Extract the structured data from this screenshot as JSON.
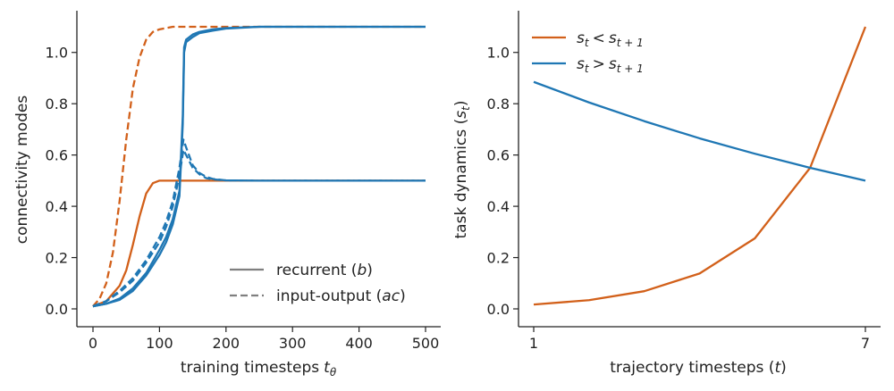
{
  "chart_data": [
    {
      "type": "line",
      "title": "",
      "xlabel": "training timesteps",
      "xlabel_sub": "θ",
      "xlabel_var": "t",
      "ylabel": "connectivity modes",
      "xlim": [
        0,
        500
      ],
      "ylim": [
        0.0,
        1.1
      ],
      "xticks": [
        0,
        100,
        200,
        300,
        400,
        500
      ],
      "yticks": [
        0.0,
        0.2,
        0.4,
        0.6,
        0.8,
        1.0
      ],
      "xtick_labels": [
        "0",
        "100",
        "200",
        "300",
        "400",
        "500"
      ],
      "ytick_labels": [
        "0.0",
        "0.2",
        "0.4",
        "0.6",
        "0.8",
        "1.0"
      ],
      "grid": false,
      "legend_position": "bottom-right",
      "legend": [
        {
          "label_prefix": "recurrent (",
          "label_var": "b",
          "label_suffix": ")",
          "style": "solid"
        },
        {
          "label_prefix": "input-output (",
          "label_var": "ac",
          "label_suffix": ")",
          "style": "dashed"
        }
      ],
      "colors": {
        "orange": "#d2601a",
        "blue": "#1f77b4",
        "legend_gray": "#7f7f7f"
      },
      "series": [
        {
          "color": "orange",
          "style": "dashed",
          "x": [
            0,
            10,
            20,
            30,
            40,
            50,
            60,
            70,
            80,
            90,
            100,
            120,
            140,
            160,
            200,
            300,
            400,
            500
          ],
          "y": [
            0.01,
            0.04,
            0.1,
            0.22,
            0.42,
            0.66,
            0.86,
            0.98,
            1.05,
            1.08,
            1.09,
            1.1,
            1.1,
            1.1,
            1.1,
            1.1,
            1.1,
            1.1
          ]
        },
        {
          "color": "orange",
          "style": "solid",
          "x": [
            0,
            20,
            40,
            50,
            60,
            70,
            80,
            90,
            100,
            110,
            120,
            140,
            200,
            300,
            400,
            500
          ],
          "y": [
            0.01,
            0.03,
            0.09,
            0.15,
            0.25,
            0.36,
            0.45,
            0.49,
            0.5,
            0.5,
            0.5,
            0.5,
            0.5,
            0.5,
            0.5,
            0.5
          ]
        },
        {
          "color": "blue",
          "style": "dashed",
          "x": [
            0,
            20,
            40,
            60,
            80,
            100,
            110,
            120,
            130,
            136,
            140,
            150,
            160,
            170,
            180,
            200,
            250,
            300,
            400,
            500
          ],
          "y": [
            0.01,
            0.03,
            0.07,
            0.12,
            0.19,
            0.28,
            0.34,
            0.42,
            0.55,
            0.66,
            0.63,
            0.56,
            0.53,
            0.515,
            0.507,
            0.501,
            0.5,
            0.5,
            0.5,
            0.5
          ]
        },
        {
          "color": "blue",
          "style": "dashed",
          "x": [
            0,
            20,
            40,
            60,
            80,
            100,
            110,
            120,
            130,
            136,
            140,
            150,
            160,
            170,
            180,
            200,
            250,
            300,
            400,
            500
          ],
          "y": [
            0.01,
            0.03,
            0.065,
            0.11,
            0.18,
            0.26,
            0.32,
            0.4,
            0.52,
            0.62,
            0.6,
            0.55,
            0.525,
            0.51,
            0.505,
            0.501,
            0.5,
            0.5,
            0.5,
            0.5
          ]
        },
        {
          "color": "blue",
          "style": "solid",
          "x": [
            0,
            20,
            40,
            60,
            80,
            100,
            110,
            120,
            130,
            135,
            137,
            140,
            150,
            160,
            180,
            200,
            250,
            300,
            400,
            500
          ],
          "y": [
            0.01,
            0.02,
            0.04,
            0.08,
            0.14,
            0.23,
            0.28,
            0.35,
            0.46,
            0.75,
            1.02,
            1.05,
            1.07,
            1.08,
            1.09,
            1.095,
            1.1,
            1.1,
            1.1,
            1.1
          ]
        },
        {
          "color": "blue",
          "style": "solid",
          "x": [
            0,
            20,
            40,
            60,
            80,
            100,
            110,
            120,
            130,
            135,
            137,
            140,
            150,
            160,
            180,
            200,
            250,
            300,
            400,
            500
          ],
          "y": [
            0.01,
            0.02,
            0.035,
            0.07,
            0.13,
            0.21,
            0.26,
            0.33,
            0.44,
            0.72,
            1.0,
            1.04,
            1.06,
            1.075,
            1.085,
            1.093,
            1.1,
            1.1,
            1.1,
            1.1
          ]
        }
      ]
    },
    {
      "type": "line",
      "title": "",
      "xlabel": "trajectory timesteps (",
      "xlabel_var": "t",
      "xlabel_suffix": ")",
      "ylabel": "task dynamics (",
      "ylabel_var": "s",
      "ylabel_sub": "t",
      "ylabel_suffix": ")",
      "xlim": [
        1,
        7
      ],
      "ylim": [
        0.0,
        1.1
      ],
      "xticks": [
        1,
        7
      ],
      "yticks": [
        0.0,
        0.2,
        0.4,
        0.6,
        0.8,
        1.0
      ],
      "xtick_labels": [
        "1",
        "7"
      ],
      "ytick_labels": [
        "0.0",
        "0.2",
        "0.4",
        "0.6",
        "0.8",
        "1.0"
      ],
      "grid": false,
      "legend_position": "top-left",
      "legend": [
        {
          "color": "orange",
          "label_lhs": "s",
          "label_lhs_sub": "t",
          "op": "<",
          "label_rhs": "s",
          "label_rhs_sub": "t + 1"
        },
        {
          "color": "blue",
          "label_lhs": "s",
          "label_lhs_sub": "t",
          "op": ">",
          "label_rhs": "s",
          "label_rhs_sub": "t + 1"
        }
      ],
      "colors": {
        "orange": "#d2601a",
        "blue": "#1f77b4"
      },
      "series": [
        {
          "color": "orange",
          "x": [
            1,
            2,
            3,
            4,
            5,
            6,
            7
          ],
          "y": [
            0.017,
            0.034,
            0.069,
            0.138,
            0.275,
            0.55,
            1.1
          ]
        },
        {
          "color": "blue",
          "x": [
            1,
            2,
            3,
            4,
            5,
            6,
            7
          ],
          "y": [
            0.885,
            0.805,
            0.732,
            0.665,
            0.605,
            0.55,
            0.5
          ]
        }
      ]
    }
  ]
}
